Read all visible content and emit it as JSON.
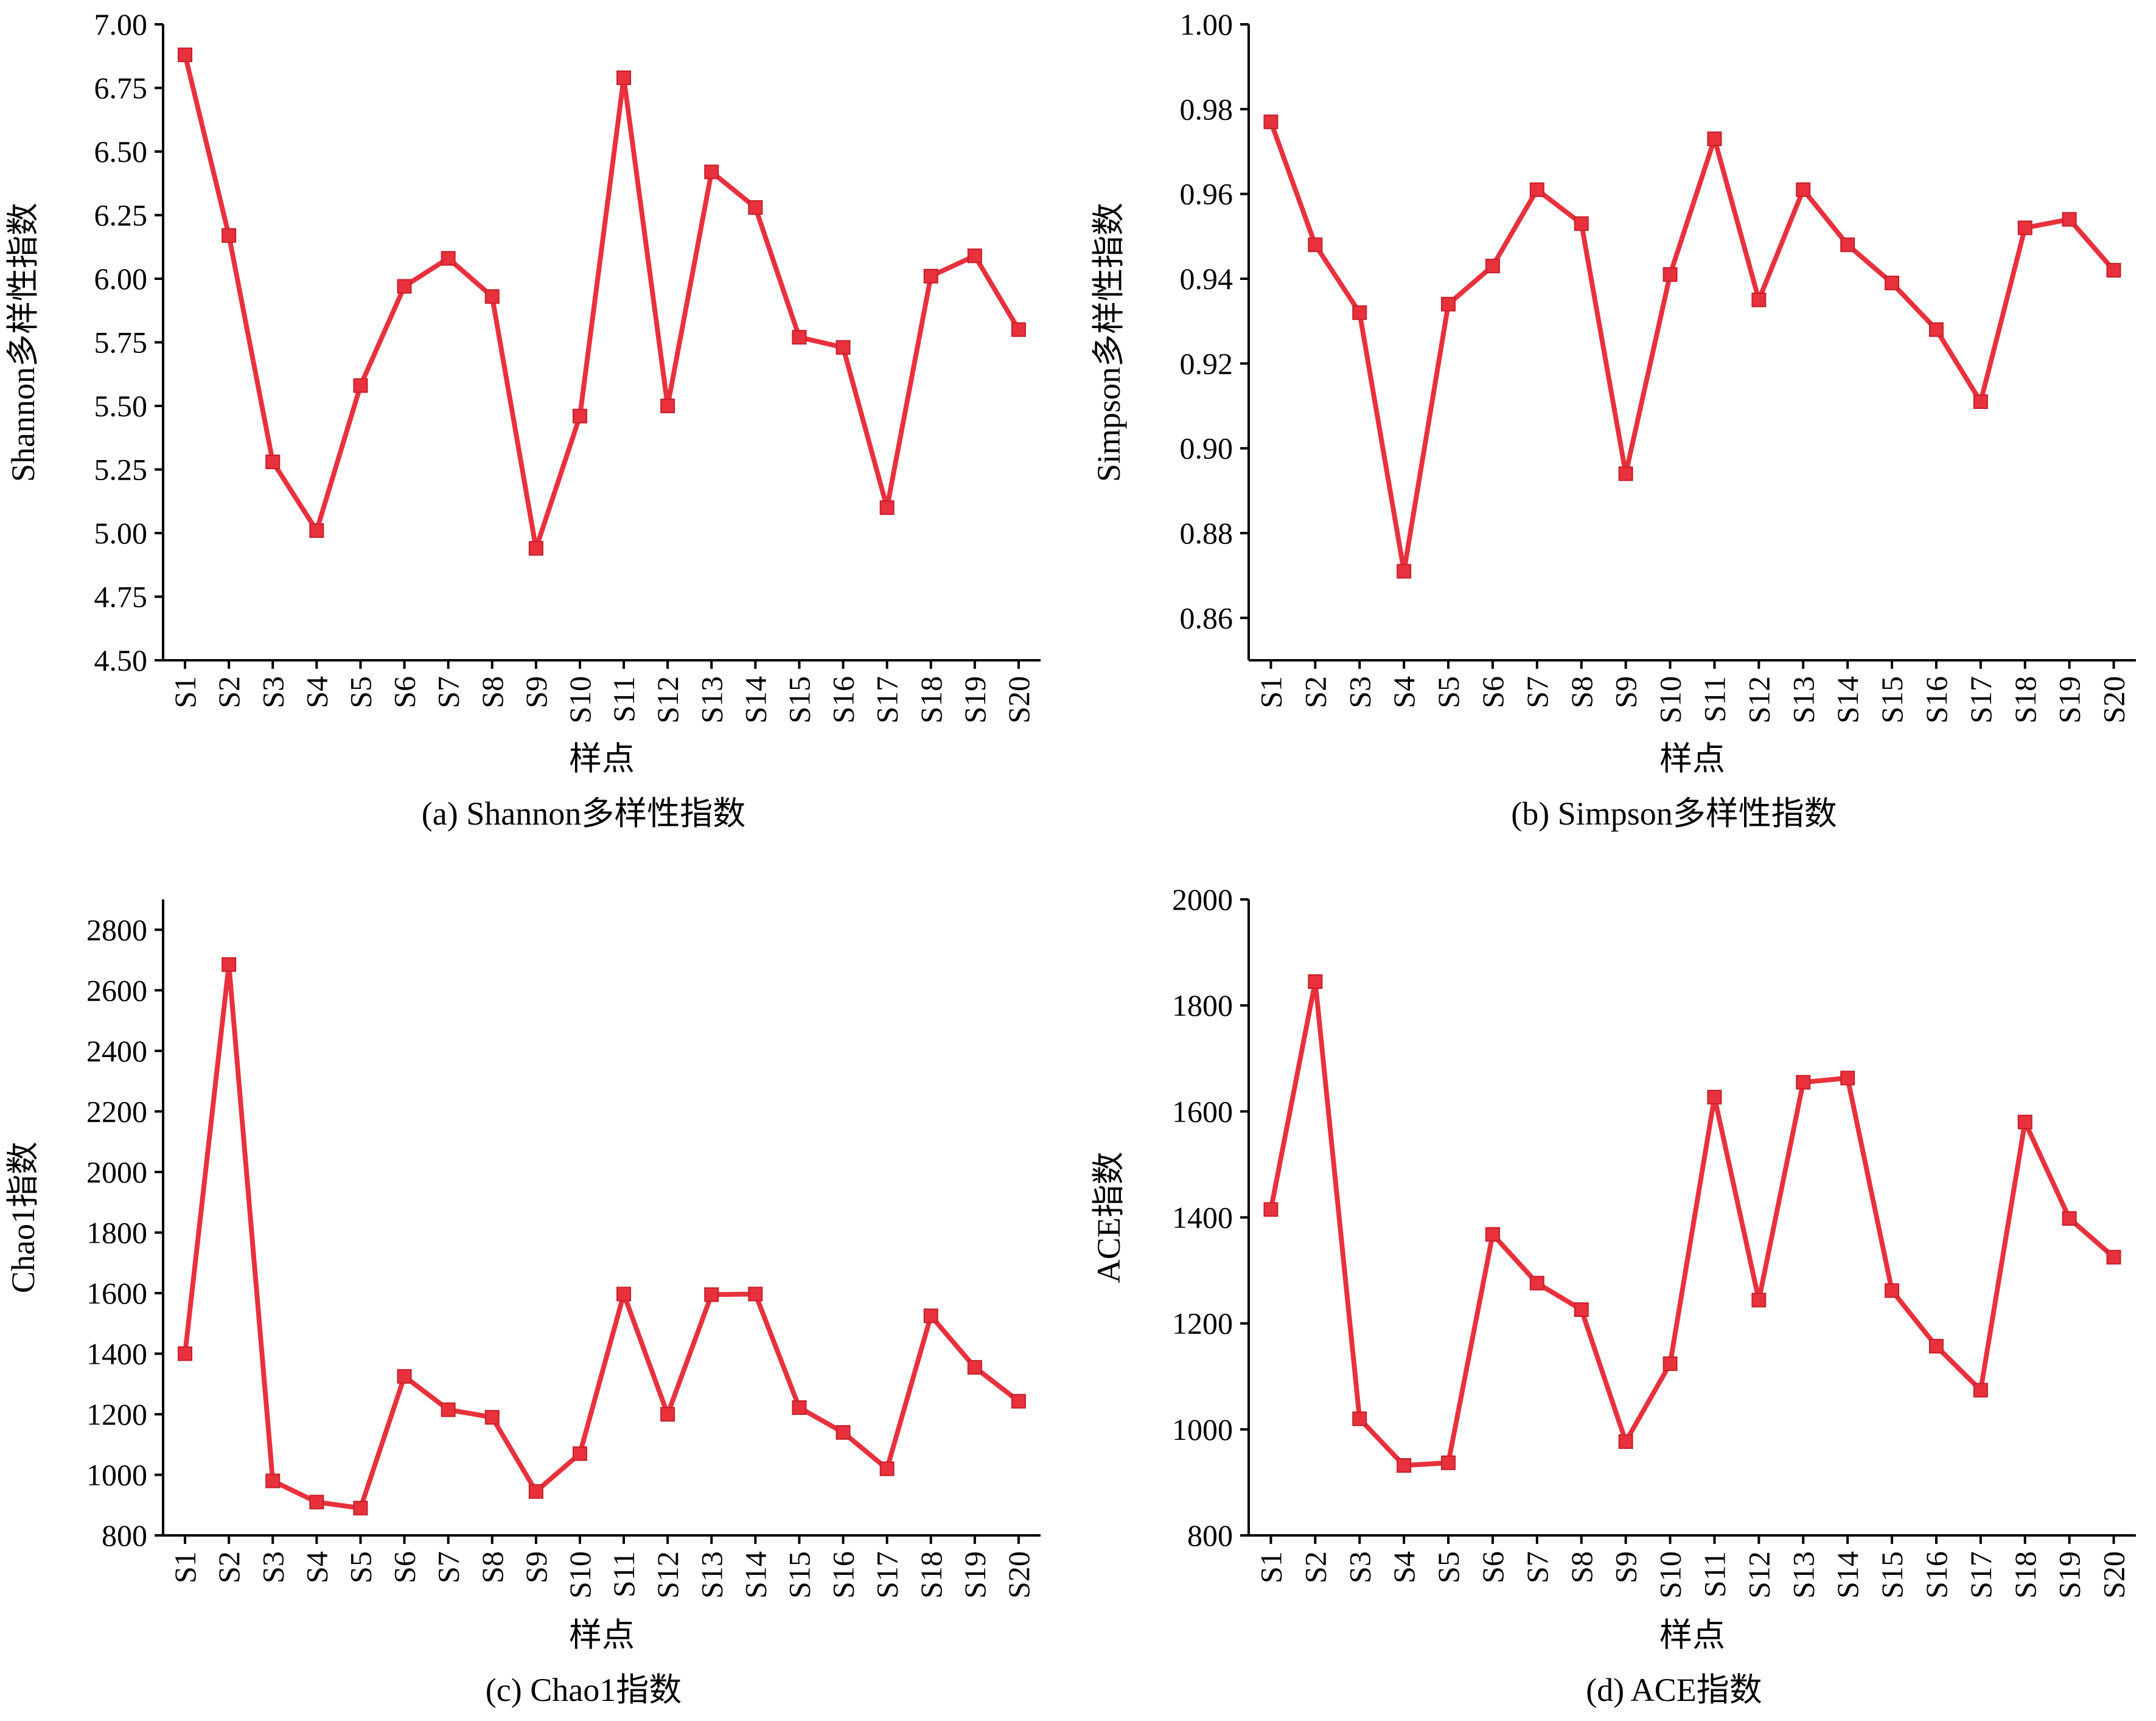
{
  "colors": {
    "series": "#e8313c",
    "axis": "#000000",
    "background": "#ffffff"
  },
  "chart_data": [
    {
      "type": "line",
      "caption": "(a) Shannon多样性指数",
      "xlabel": "样点",
      "ylabel": "Shannon多样性指数",
      "categories": [
        "S1",
        "S2",
        "S3",
        "S4",
        "S5",
        "S6",
        "S7",
        "S8",
        "S9",
        "S10",
        "S11",
        "S12",
        "S13",
        "S14",
        "S15",
        "S16",
        "S17",
        "S18",
        "S19",
        "S20"
      ],
      "values": [
        6.88,
        6.17,
        5.28,
        5.01,
        5.58,
        5.97,
        6.08,
        5.93,
        4.94,
        5.46,
        6.79,
        5.5,
        6.42,
        6.28,
        5.77,
        5.73,
        5.1,
        6.01,
        6.09,
        5.8
      ],
      "ylim": [
        4.5,
        7.0
      ],
      "yticks": [
        "4.50",
        "4.75",
        "5.00",
        "5.25",
        "5.50",
        "5.75",
        "6.00",
        "6.25",
        "6.50",
        "6.75",
        "7.00"
      ],
      "marker": "square",
      "grid": false
    },
    {
      "type": "line",
      "caption": "(b) Simpson多样性指数",
      "xlabel": "样点",
      "ylabel": "Simpson多样性指数",
      "categories": [
        "S1",
        "S2",
        "S3",
        "S4",
        "S5",
        "S6",
        "S7",
        "S8",
        "S9",
        "S10",
        "S11",
        "S12",
        "S13",
        "S14",
        "S15",
        "S16",
        "S17",
        "S18",
        "S19",
        "S20"
      ],
      "values": [
        0.977,
        0.948,
        0.932,
        0.871,
        0.934,
        0.943,
        0.961,
        0.953,
        0.894,
        0.941,
        0.973,
        0.935,
        0.961,
        0.948,
        0.939,
        0.928,
        0.911,
        0.952,
        0.954,
        0.942
      ],
      "ylim": [
        0.85,
        1.0
      ],
      "yticks": [
        "0.86",
        "0.88",
        "0.90",
        "0.92",
        "0.94",
        "0.96",
        "0.98",
        "1.00"
      ],
      "marker": "square",
      "grid": false
    },
    {
      "type": "line",
      "caption": "(c) Chao1指数",
      "xlabel": "样点",
      "ylabel": "Chao1指数",
      "categories": [
        "S1",
        "S2",
        "S3",
        "S4",
        "S5",
        "S6",
        "S7",
        "S8",
        "S9",
        "S10",
        "S11",
        "S12",
        "S13",
        "S14",
        "S15",
        "S16",
        "S17",
        "S18",
        "S19",
        "S20"
      ],
      "values": [
        1400,
        2685,
        980,
        910,
        890,
        1325,
        1215,
        1190,
        945,
        1070,
        1597,
        1200,
        1595,
        1597,
        1222,
        1140,
        1020,
        1525,
        1355,
        1243
      ],
      "ylim": [
        800,
        2900
      ],
      "yticks": [
        "800",
        "1000",
        "1200",
        "1400",
        "1600",
        "1800",
        "2000",
        "2200",
        "2400",
        "2600",
        "2800"
      ],
      "marker": "square",
      "grid": false
    },
    {
      "type": "line",
      "caption": "(d) ACE指数",
      "xlabel": "样点",
      "ylabel": "ACE指数",
      "categories": [
        "S1",
        "S2",
        "S3",
        "S4",
        "S5",
        "S6",
        "S7",
        "S8",
        "S9",
        "S10",
        "S11",
        "S12",
        "S13",
        "S14",
        "S15",
        "S16",
        "S17",
        "S18",
        "S19",
        "S20"
      ],
      "values": [
        1415,
        1845,
        1020,
        932,
        937,
        1368,
        1276,
        1226,
        977,
        1124,
        1627,
        1244,
        1655,
        1663,
        1262,
        1157,
        1074,
        1580,
        1398,
        1325
      ],
      "ylim": [
        800,
        2000
      ],
      "yticks": [
        "800",
        "1000",
        "1200",
        "1400",
        "1600",
        "1800",
        "2000"
      ],
      "marker": "square",
      "grid": false
    }
  ]
}
